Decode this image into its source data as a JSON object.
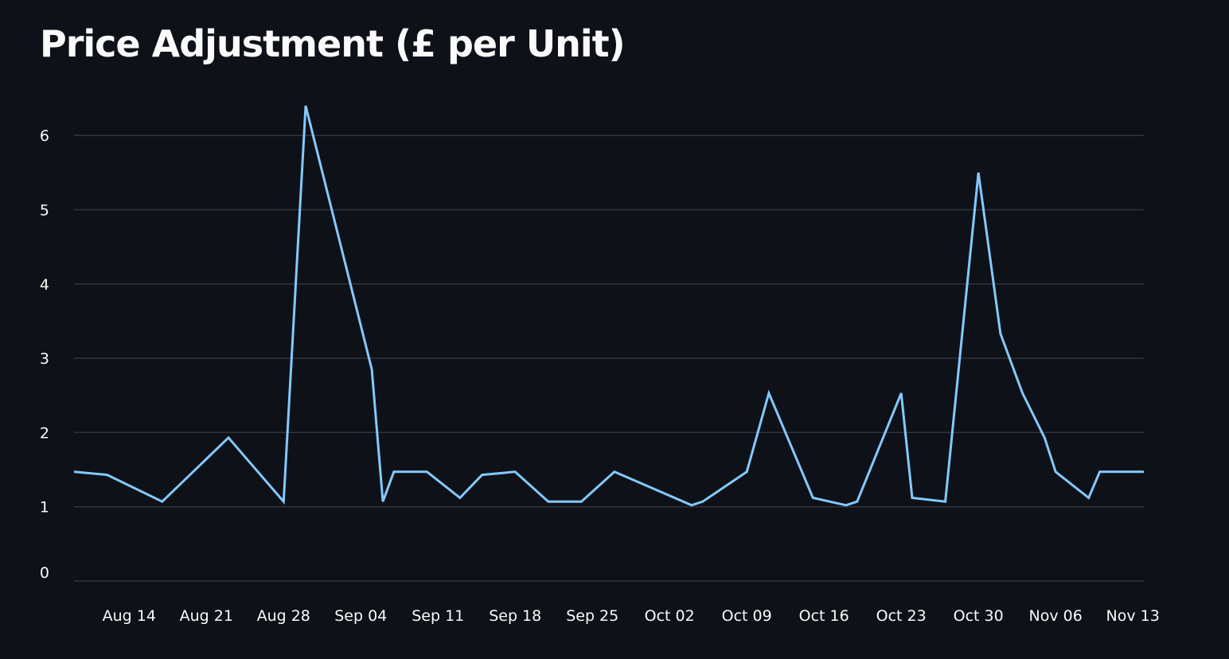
{
  "chart_data": {
    "type": "line",
    "title": "Price Adjustment (£ per Unit)",
    "xlabel": "",
    "ylabel": "",
    "ylim": [
      0,
      6.5
    ],
    "grid": true,
    "line_color": "#83c9ff",
    "yticks": [
      0,
      1,
      2,
      3,
      4,
      5,
      6
    ],
    "xticks": [
      {
        "date": "2024-08-14",
        "label": "Aug 14"
      },
      {
        "date": "2024-08-21",
        "label": "Aug 21"
      },
      {
        "date": "2024-08-28",
        "label": "Aug 28"
      },
      {
        "date": "2024-09-04",
        "label": "Sep 04"
      },
      {
        "date": "2024-09-11",
        "label": "Sep 11"
      },
      {
        "date": "2024-09-18",
        "label": "Sep 18"
      },
      {
        "date": "2024-09-25",
        "label": "Sep 25"
      },
      {
        "date": "2024-10-02",
        "label": "Oct 02"
      },
      {
        "date": "2024-10-09",
        "label": "Oct 09"
      },
      {
        "date": "2024-10-16",
        "label": "Oct 16"
      },
      {
        "date": "2024-10-23",
        "label": "Oct 23"
      },
      {
        "date": "2024-10-30",
        "label": "Oct 30"
      },
      {
        "date": "2024-11-06",
        "label": "Nov 06"
      },
      {
        "date": "2024-11-13",
        "label": "Nov 13"
      }
    ],
    "xlim": [
      "2024-08-09",
      "2024-11-14"
    ],
    "series": [
      {
        "points": [
          {
            "x": "2024-08-09",
            "y": 1.47
          },
          {
            "x": "2024-08-12",
            "y": 1.43
          },
          {
            "x": "2024-08-17",
            "y": 1.07
          },
          {
            "x": "2024-08-23",
            "y": 1.93
          },
          {
            "x": "2024-08-28",
            "y": 1.07
          },
          {
            "x": "2024-08-30",
            "y": 6.4
          },
          {
            "x": "2024-09-05",
            "y": 2.85
          },
          {
            "x": "2024-09-06",
            "y": 1.07
          },
          {
            "x": "2024-09-07",
            "y": 1.47
          },
          {
            "x": "2024-09-10",
            "y": 1.47
          },
          {
            "x": "2024-09-13",
            "y": 1.12
          },
          {
            "x": "2024-09-15",
            "y": 1.43
          },
          {
            "x": "2024-09-18",
            "y": 1.47
          },
          {
            "x": "2024-09-21",
            "y": 1.07
          },
          {
            "x": "2024-09-24",
            "y": 1.07
          },
          {
            "x": "2024-09-27",
            "y": 1.47
          },
          {
            "x": "2024-10-04",
            "y": 1.02
          },
          {
            "x": "2024-10-05",
            "y": 1.07
          },
          {
            "x": "2024-10-09",
            "y": 1.47
          },
          {
            "x": "2024-10-11",
            "y": 2.53
          },
          {
            "x": "2024-10-15",
            "y": 1.12
          },
          {
            "x": "2024-10-18",
            "y": 1.02
          },
          {
            "x": "2024-10-19",
            "y": 1.07
          },
          {
            "x": "2024-10-23",
            "y": 2.53
          },
          {
            "x": "2024-10-24",
            "y": 1.12
          },
          {
            "x": "2024-10-27",
            "y": 1.07
          },
          {
            "x": "2024-10-30",
            "y": 5.5
          },
          {
            "x": "2024-11-01",
            "y": 3.33
          },
          {
            "x": "2024-11-03",
            "y": 2.53
          },
          {
            "x": "2024-11-05",
            "y": 1.93
          },
          {
            "x": "2024-11-06",
            "y": 1.47
          },
          {
            "x": "2024-11-09",
            "y": 1.12
          },
          {
            "x": "2024-11-10",
            "y": 1.47
          },
          {
            "x": "2024-11-14",
            "y": 1.47
          }
        ]
      }
    ]
  }
}
